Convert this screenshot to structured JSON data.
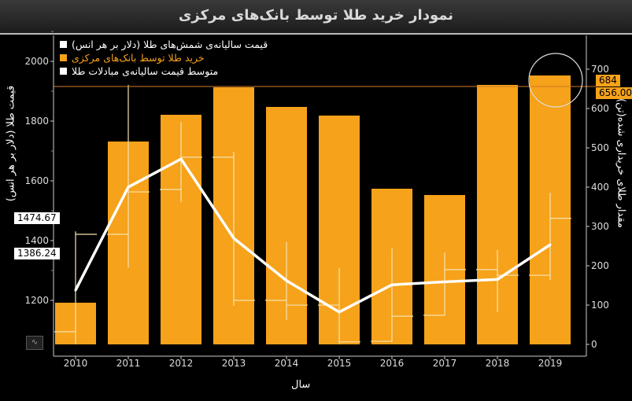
{
  "title": "نمودار خرید طلا توسط بانک‌های مرکزی",
  "colors": {
    "bar": "#f6a21a",
    "line": "#ffffff",
    "ohlc": "#f7e3b0",
    "ref_line": "#d07a2a",
    "background": "#000000"
  },
  "legend": [
    {
      "label": "قیمت سالیانه‌ی شمش‌های طلا (دلار بر هر انس)",
      "color": "#ffffff"
    },
    {
      "label": "خرید طلا توسط بانک‌های مرکزی",
      "color": "#f6a21a"
    },
    {
      "label": "متوسط قیمت سالیانه‌ی مبادلات طلا",
      "color": "#ffffff"
    }
  ],
  "tags": {
    "left_1": "1474.67",
    "left_2": "1386.24",
    "right_1": "684",
    "right_2": "656.00"
  },
  "chart_data": {
    "type": "bar",
    "title": "نمودار خرید طلا توسط بانک‌های مرکزی",
    "xlabel": "سال",
    "ylabel_left": "قیمت طلا (دلار بر هر انس)",
    "ylabel_right": "مقدار طلای خریداری شده(تن)",
    "categories": [
      "2010",
      "2011",
      "2012",
      "2013",
      "2014",
      "2015",
      "2016",
      "2017",
      "2018",
      "2019"
    ],
    "ylim_left": [
      1050,
      2100
    ],
    "yticks_left": [
      1200,
      1400,
      1600,
      1800,
      2000
    ],
    "ylim_right": [
      0,
      740
    ],
    "yticks_right": [
      0,
      100,
      200,
      300,
      400,
      500,
      600,
      700
    ],
    "grid": false,
    "legend_position": "top-left",
    "reference_line_right": 656,
    "series": [
      {
        "name": "خرید طلا توسط بانک‌های مرکزی",
        "type": "bar",
        "axis": "right",
        "values": [
          106,
          516,
          584,
          654,
          604,
          582,
          396,
          380,
          660,
          684
        ]
      },
      {
        "name": "متوسط قیمت سالیانه‌ی مبادلات طلا",
        "type": "line",
        "axis": "left",
        "values": [
          1234,
          1579,
          1673,
          1408,
          1266,
          1161,
          1252,
          1262,
          1270,
          1386.24
        ]
      },
      {
        "name": "قیمت سالیانه‌ی شمش‌های طلا (دلار بر هر انس)",
        "type": "ohlc",
        "axis": "left",
        "open": [
          1095,
          1421,
          1571,
          1679,
          1200,
          1184,
          1063,
          1150,
          1303,
          1284
        ],
        "high": [
          1431,
          1921,
          1797,
          1697,
          1395,
          1308,
          1374,
          1360,
          1368,
          1560
        ],
        "low": [
          1045,
          1310,
          1529,
          1182,
          1134,
          1046,
          1061,
          1150,
          1160,
          1268
        ],
        "close": [
          1421,
          1563,
          1679,
          1200,
          1184,
          1061,
          1147,
          1303,
          1284,
          1474.67
        ]
      }
    ]
  }
}
